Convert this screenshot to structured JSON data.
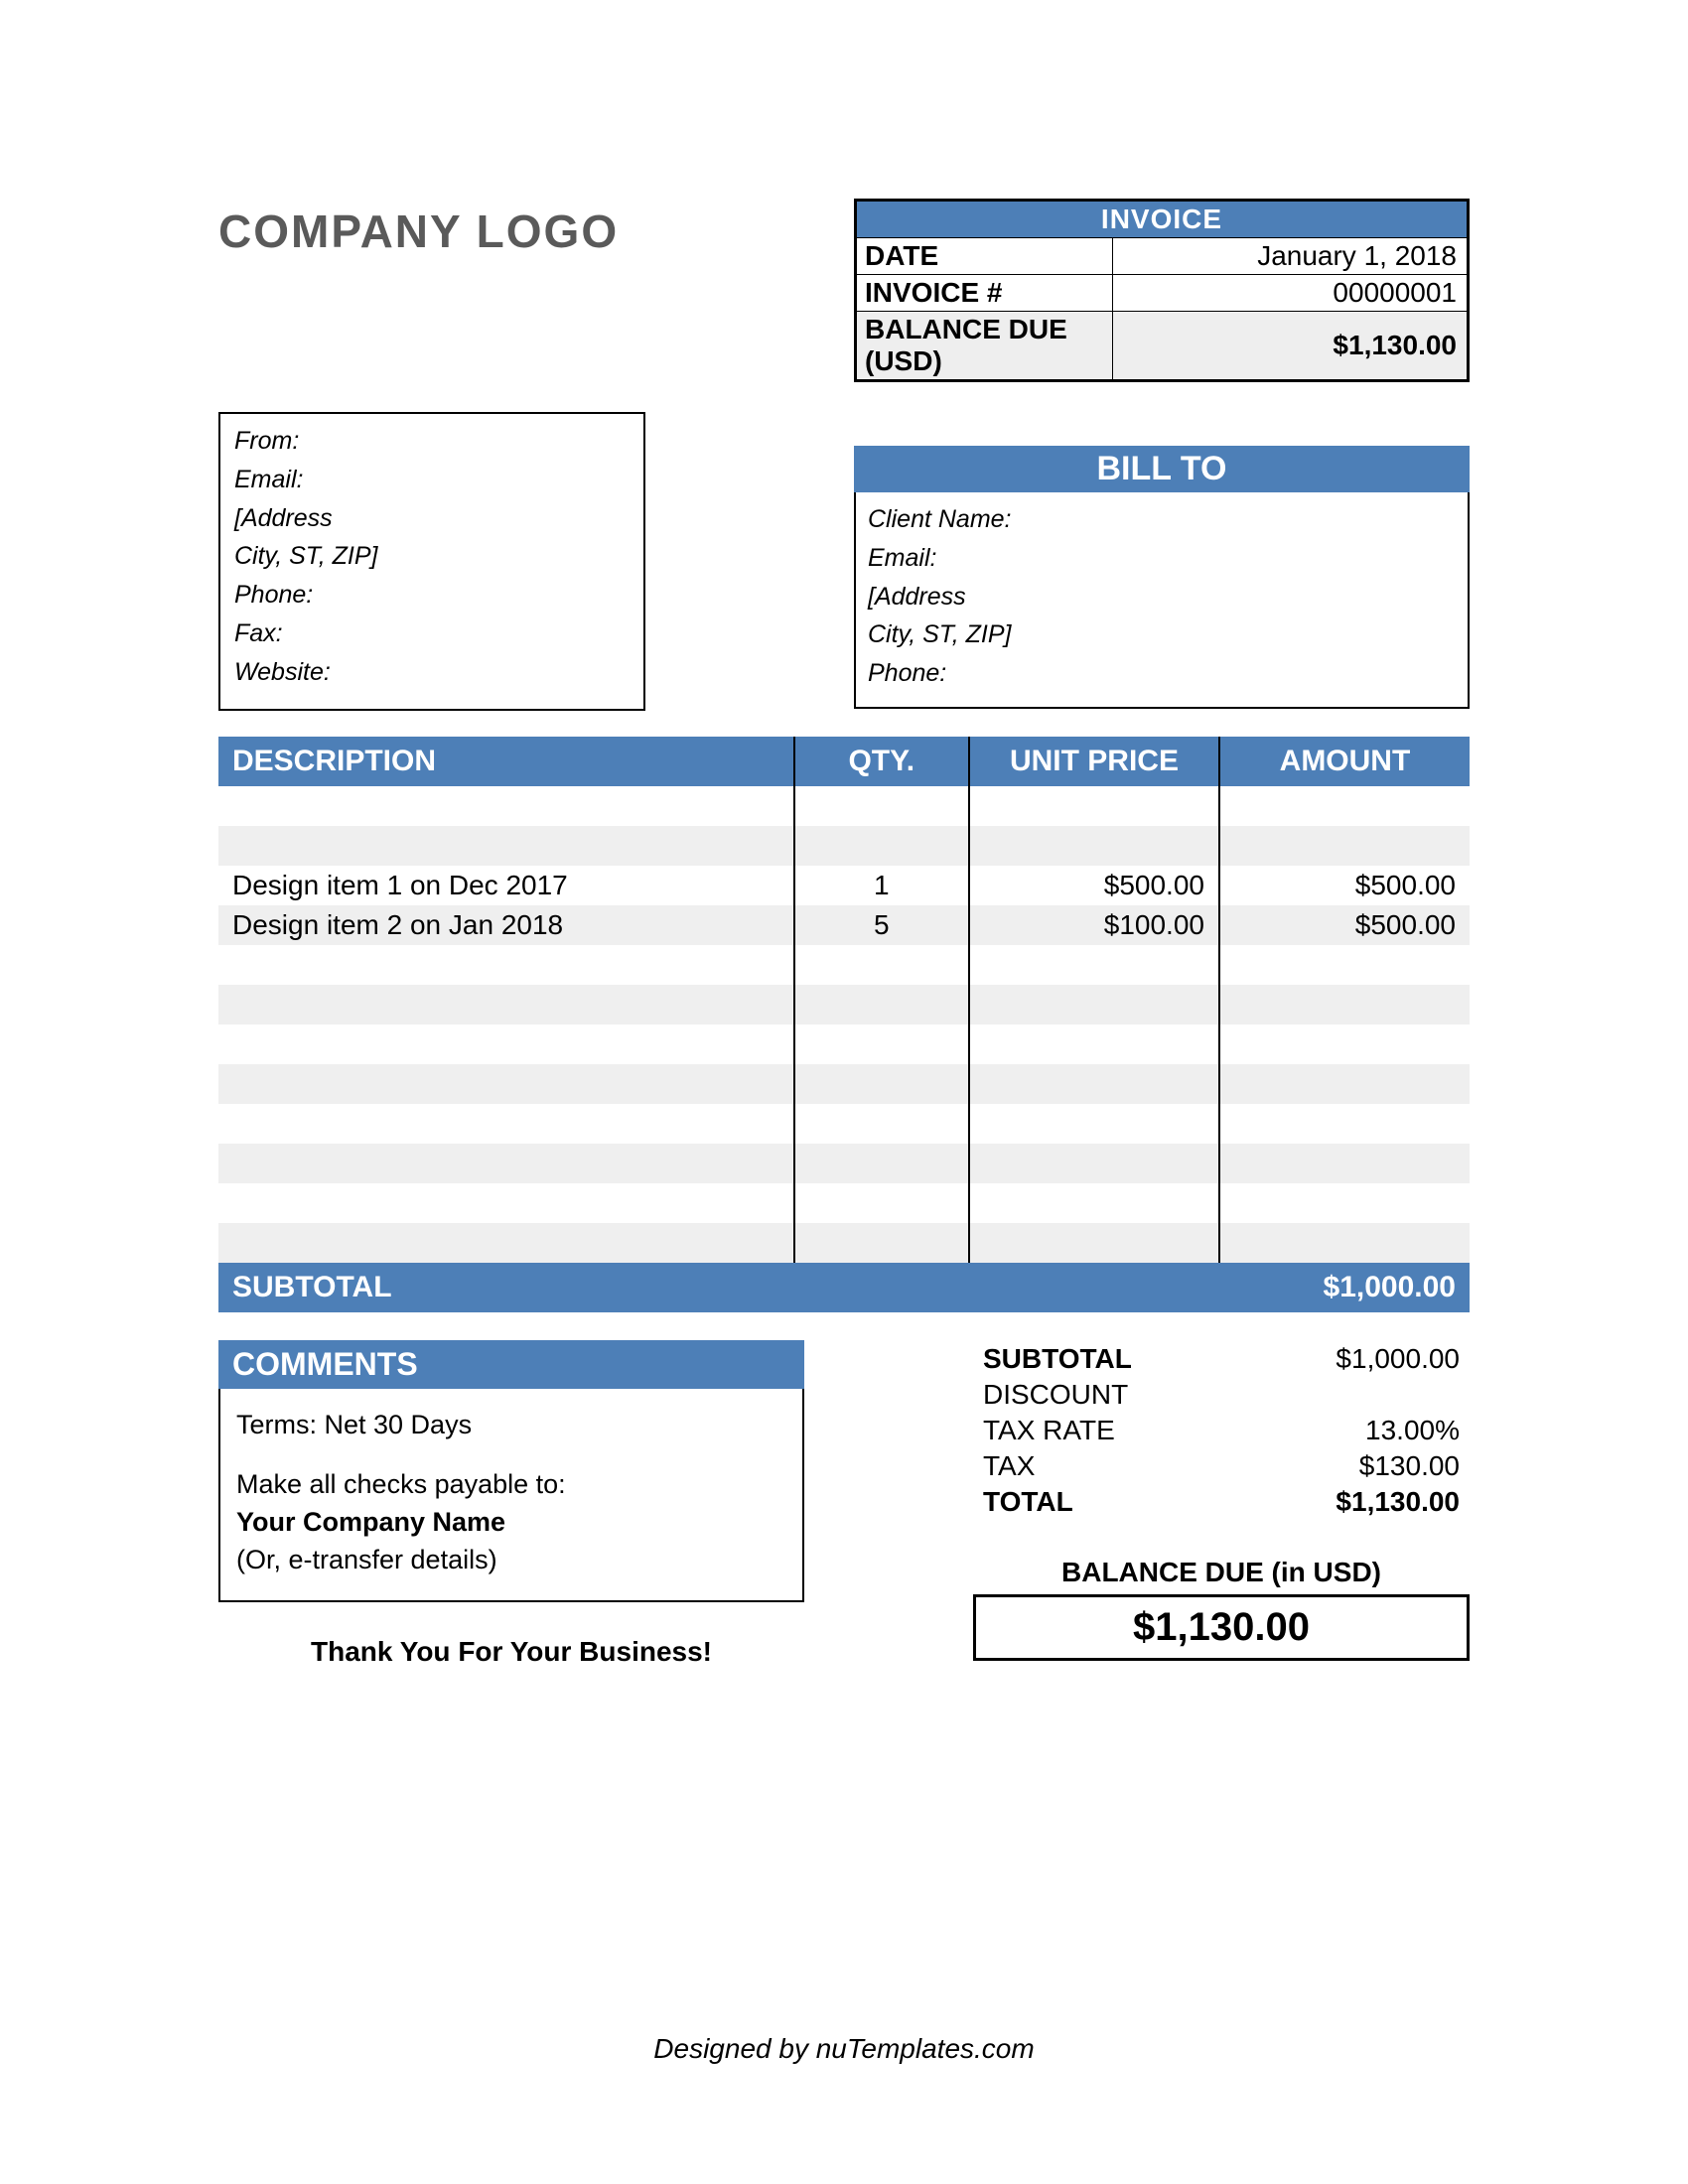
{
  "colors": {
    "accent": "#4d7fb7",
    "shade": "#efefef",
    "meta_shade": "#eeeeee",
    "logo_gray": "#5a5a5a"
  },
  "logo_text": "COMPANY LOGO",
  "meta": {
    "title": "INVOICE",
    "date_label": "DATE",
    "date_value": "January 1, 2018",
    "number_label": "INVOICE #",
    "number_value": "00000001",
    "balance_label": "BALANCE DUE (USD)",
    "balance_value": "$1,130.00"
  },
  "from": {
    "from": "From:",
    "email": "Email:",
    "addr1": "[Address",
    "addr2": "City, ST, ZIP]",
    "phone": "Phone:",
    "fax": "Fax:",
    "website": "Website:"
  },
  "billto": {
    "title": "BILL TO",
    "name": "Client Name:",
    "email": "Email:",
    "addr1": "[Address",
    "addr2": "City, ST, ZIP]",
    "phone": "Phone:"
  },
  "items_table": {
    "headers": {
      "desc": "DESCRIPTION",
      "qty": "QTY.",
      "unit": "UNIT PRICE",
      "amount": "AMOUNT"
    },
    "col_widths_pct": [
      46,
      14,
      20,
      20
    ],
    "total_rows": 12,
    "rows": [
      {
        "desc": "Design item 1 on Dec 2017",
        "qty": "1",
        "unit": "$500.00",
        "amount": "$500.00"
      },
      {
        "desc": "Design item 2 on Jan 2018",
        "qty": "5",
        "unit": "$100.00",
        "amount": "$500.00"
      }
    ],
    "data_start_row": 2,
    "subtotal_label": "SUBTOTAL",
    "subtotal_value": "$1,000.00"
  },
  "comments": {
    "title": "COMMENTS",
    "terms": "Terms: Net 30 Days",
    "payable_intro": "Make all checks payable to:",
    "payable_name": "Your Company Name",
    "payable_alt": "(Or, e-transfer details)"
  },
  "totals": {
    "subtotal_label": "SUBTOTAL",
    "subtotal_value": "$1,000.00",
    "discount_label": "DISCOUNT",
    "discount_value": "",
    "taxrate_label": "TAX RATE",
    "taxrate_value": "13.00%",
    "tax_label": "TAX",
    "tax_value": "$130.00",
    "total_label": "TOTAL",
    "total_value": "$1,130.00"
  },
  "balance_due": {
    "label": "BALANCE DUE (in USD)",
    "value": "$1,130.00"
  },
  "thank_you": "Thank You For Your Business!",
  "credit": "Designed by nuTemplates.com"
}
